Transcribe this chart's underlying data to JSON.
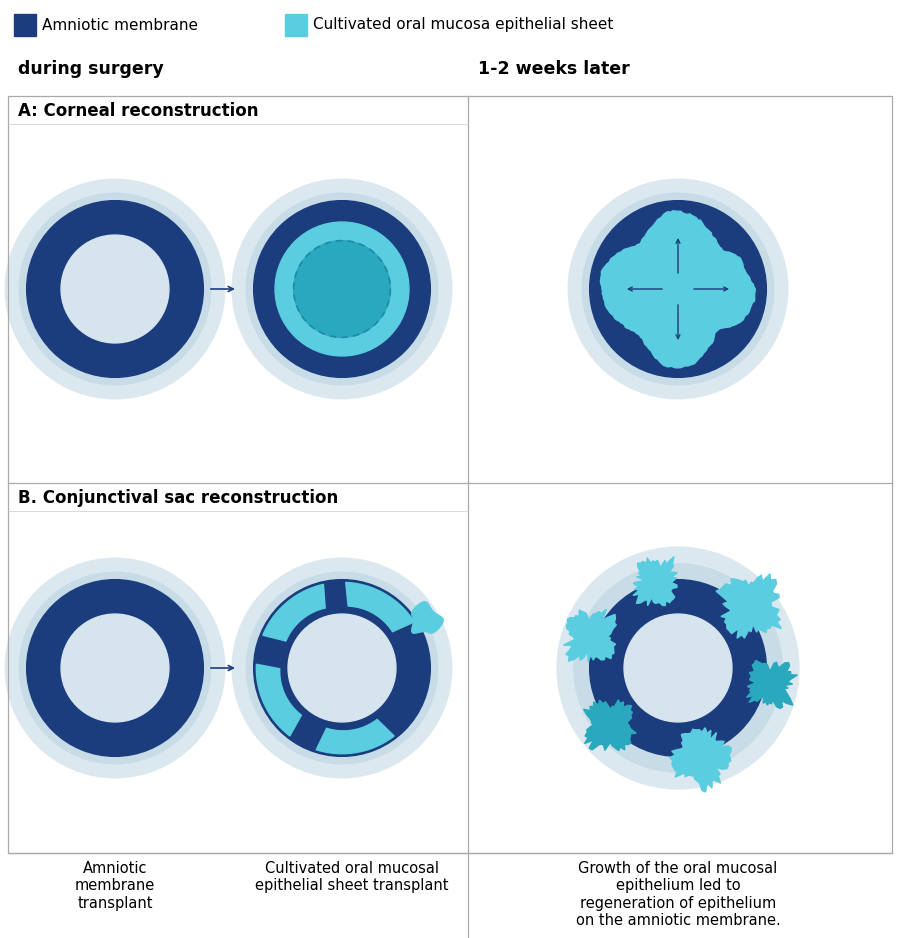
{
  "legend_items": [
    {
      "label": "Amniotic membrane",
      "color": "#1b3d7d"
    },
    {
      "label": "Cultivated oral mucosa epithelial sheet",
      "color": "#5bcde0"
    }
  ],
  "col_headers": [
    "during surgery",
    "1-2 weeks later"
  ],
  "row_A_title": "A: Corneal reconstruction",
  "row_B_title": "B. Conjunctival sac reconstruction",
  "caption_left": "Amniotic\nmembrane\ntransplant",
  "caption_mid": "Cultivated oral mucosal\nepithelial sheet transplant",
  "caption_right": "Growth of the oral mucosal\nepithelium led to\nregeneration of epithelium\non the amniotic membrane.",
  "color_dark_blue": "#1b3d7d",
  "color_cyan": "#5bcde0",
  "color_dark_cyan": "#2aa8be",
  "color_halo": "#dce8ef",
  "color_halo2": "#c8dce8",
  "color_center": "#d5e4ed",
  "color_white": "#ffffff"
}
